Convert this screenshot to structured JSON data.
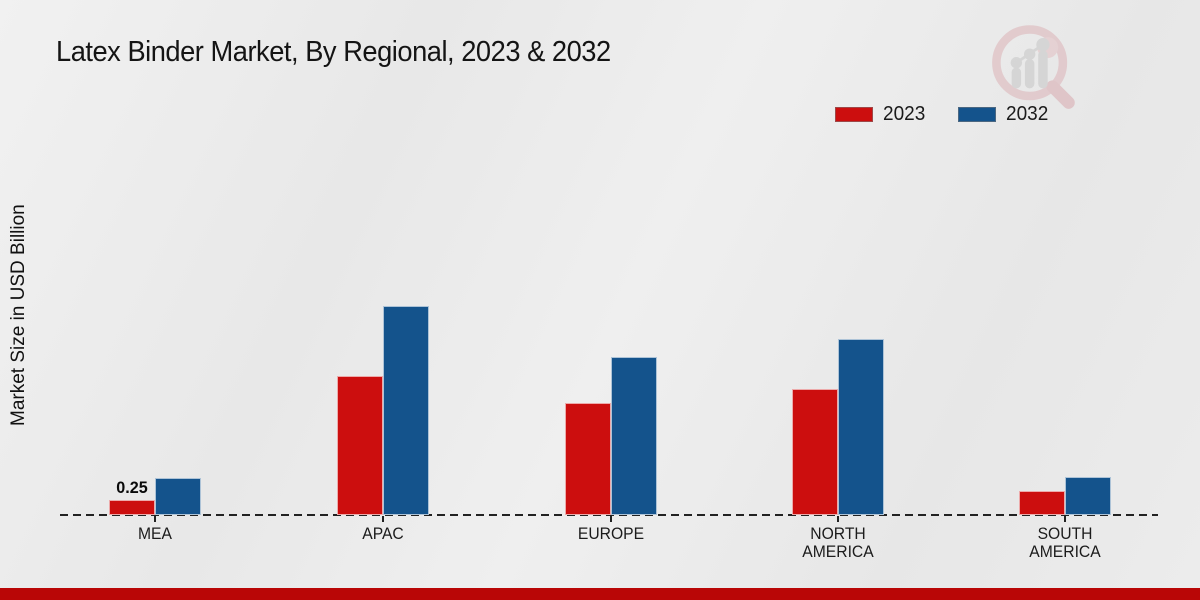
{
  "title": "Latex Binder Market, By Regional, 2023 & 2032",
  "legend": {
    "items": [
      {
        "label": "2023",
        "color": "#cc0e0e"
      },
      {
        "label": "2032",
        "color": "#14538c"
      }
    ]
  },
  "footer": {
    "accent_color": "#b90606"
  },
  "logo": {
    "name": "magnifier-growth-chart-logo",
    "ring_color": "#dcb3b7",
    "bars_color": "#c6c6c6"
  },
  "chart_data": {
    "type": "bar",
    "title": "Latex Binder Market, By Regional, 2023 & 2032",
    "xlabel": "",
    "ylabel": "Market Size in USD Billion",
    "unit": "USD Billion",
    "categories": [
      "MEA",
      "APAC",
      "EUROPE",
      "NORTH\nAMERICA",
      "SOUTH\nAMERICA"
    ],
    "series": [
      {
        "name": "2023",
        "color": "#cc0e0e",
        "values": [
          0.25,
          2.35,
          1.9,
          2.14,
          0.41
        ]
      },
      {
        "name": "2032",
        "color": "#14538c",
        "values": [
          0.63,
          3.55,
          2.68,
          2.98,
          0.64
        ]
      }
    ],
    "annotations": [
      {
        "series": "2023",
        "category": "MEA",
        "text": "0.25"
      }
    ],
    "ylim": [
      0,
      4
    ],
    "grid": false,
    "legend_position": "top-right",
    "baseline_style": "dashed"
  }
}
